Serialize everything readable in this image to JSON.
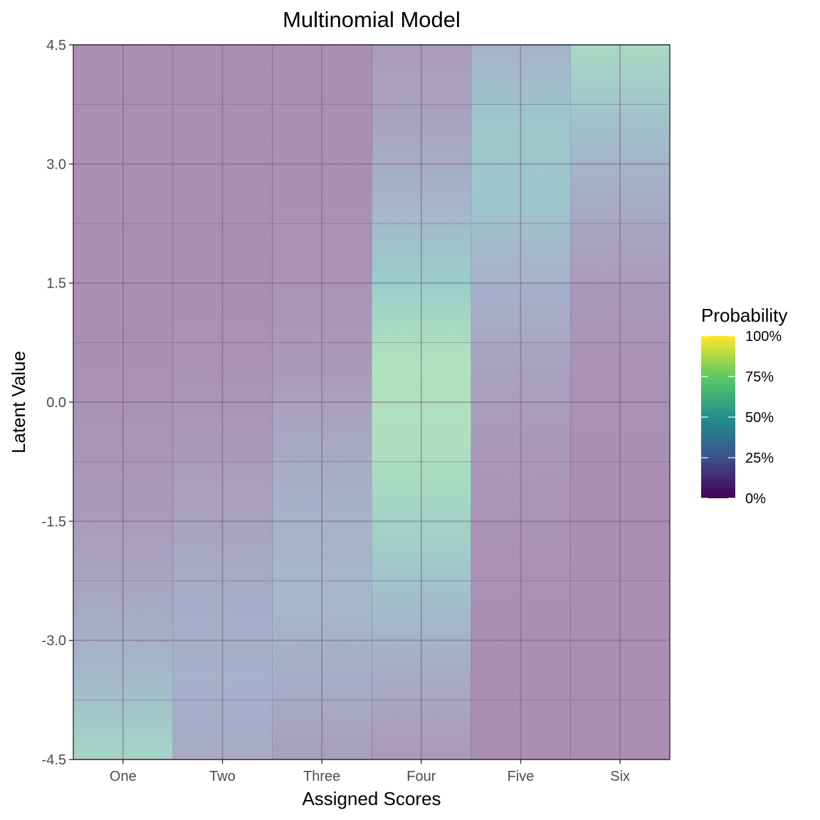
{
  "chart_data": {
    "type": "heatmap",
    "title": "Multinomial Model",
    "xlabel": "Assigned Scores",
    "ylabel": "Latent Value",
    "categories": [
      "One",
      "Two",
      "Three",
      "Four",
      "Five",
      "Six"
    ],
    "y_ticks": [
      "4.5",
      "3.0",
      "1.5",
      "0.0",
      "-1.5",
      "-3.0",
      "-4.5"
    ],
    "ylim": [
      -4.5,
      4.5
    ],
    "grid": true,
    "colorscale": "viridis",
    "fill_alpha": 0.45,
    "legend": {
      "title": "Probability",
      "position": "right",
      "labels": [
        "100%",
        "75%",
        "50%",
        "25%",
        "0%"
      ],
      "range": [
        0,
        1
      ]
    },
    "latent": [
      -4.5,
      -3.5,
      -2.5,
      -1.5,
      -0.5,
      0.5,
      1.5,
      2.5,
      3.5,
      4.5
    ],
    "probabilities": {
      "One": [
        0.58,
        0.33,
        0.18,
        0.1,
        0.05,
        0.02,
        0.01,
        0.01,
        0.01,
        0.01
      ],
      "Two": [
        0.2,
        0.25,
        0.22,
        0.15,
        0.08,
        0.03,
        0.01,
        0.01,
        0.01,
        0.01
      ],
      "Three": [
        0.12,
        0.22,
        0.3,
        0.26,
        0.18,
        0.08,
        0.04,
        0.02,
        0.01,
        0.01
      ],
      "Four": [
        0.08,
        0.2,
        0.36,
        0.56,
        0.68,
        0.7,
        0.5,
        0.28,
        0.15,
        0.1
      ],
      "Five": [
        0.01,
        0.01,
        0.02,
        0.04,
        0.08,
        0.15,
        0.25,
        0.42,
        0.44,
        0.26
      ],
      "Six": [
        0.01,
        0.01,
        0.01,
        0.01,
        0.02,
        0.03,
        0.1,
        0.2,
        0.38,
        0.62
      ]
    }
  }
}
